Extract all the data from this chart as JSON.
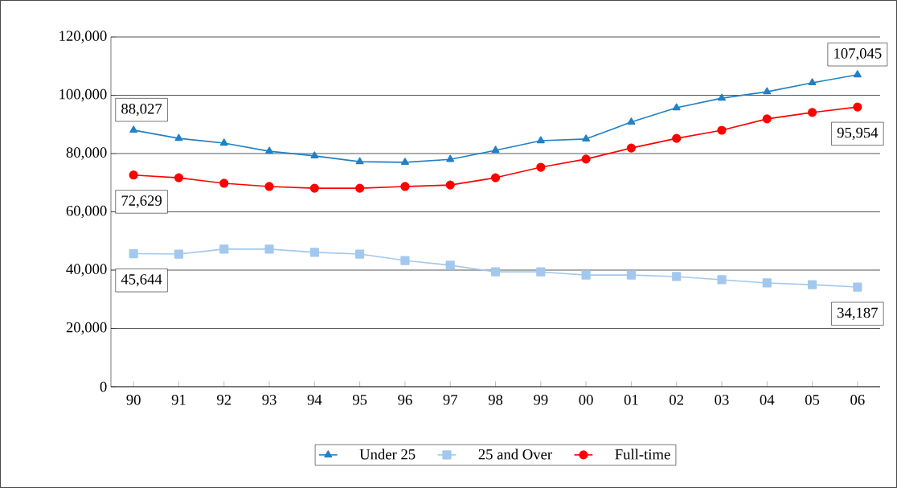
{
  "chart_data": {
    "type": "line",
    "categories": [
      "90",
      "91",
      "92",
      "93",
      "94",
      "95",
      "96",
      "97",
      "98",
      "99",
      "00",
      "01",
      "02",
      "03",
      "04",
      "05",
      "06"
    ],
    "series": [
      {
        "name": "Under 25",
        "color": "#2380c4",
        "marker": "triangle",
        "values": [
          88027,
          85200,
          83600,
          80800,
          79200,
          77200,
          77000,
          78000,
          81100,
          84400,
          85000,
          90800,
          95700,
          99000,
          101200,
          104300,
          107045
        ]
      },
      {
        "name": "25 and Over",
        "color": "#a3c8ee",
        "marker": "square",
        "values": [
          45644,
          45500,
          47200,
          47200,
          46100,
          45500,
          43300,
          41700,
          39400,
          39400,
          38300,
          38300,
          37800,
          36700,
          35600,
          35000,
          34187
        ]
      },
      {
        "name": "Full-time",
        "color": "#ff0000",
        "marker": "circle",
        "values": [
          72629,
          71700,
          69800,
          68700,
          68100,
          68100,
          68700,
          69200,
          71700,
          75300,
          78100,
          81900,
          85200,
          88000,
          91900,
          94100,
          95954
        ]
      }
    ],
    "ylim": [
      0,
      120000
    ],
    "yticks": [
      {
        "value": 0,
        "label": "0"
      },
      {
        "value": 20000,
        "label": "20,000"
      },
      {
        "value": 40000,
        "label": "40,000"
      },
      {
        "value": 60000,
        "label": "60,000"
      },
      {
        "value": 80000,
        "label": "80,000"
      },
      {
        "value": 100000,
        "label": "100,000"
      },
      {
        "value": 120000,
        "label": "120,000"
      }
    ],
    "grid": "y",
    "legend": "bottom",
    "line_style": "solid",
    "annotations": [
      {
        "text": "88,027",
        "x": "90",
        "y": 88027
      },
      {
        "text": "72,629",
        "x": "90",
        "y": 72629
      },
      {
        "text": "45,644",
        "x": "90",
        "y": 45644
      },
      {
        "text": "107,045",
        "x": "06",
        "y": 107045
      },
      {
        "text": "95,954",
        "x": "06",
        "y": 95954
      },
      {
        "text": "34,187",
        "x": "06",
        "y": 34187
      }
    ]
  }
}
